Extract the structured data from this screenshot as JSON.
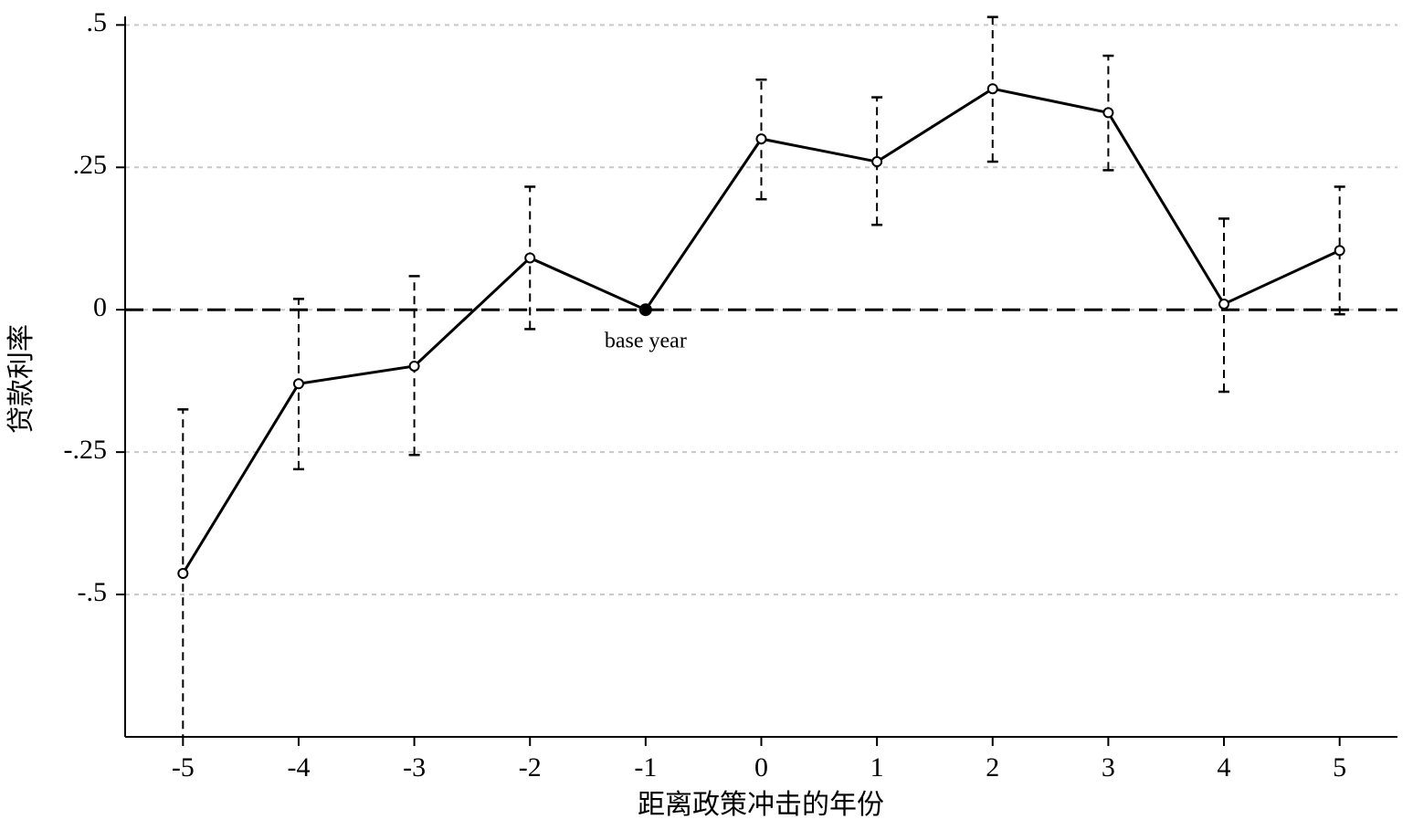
{
  "chart_data": {
    "type": "errorbar-line",
    "x": [
      -5,
      -4,
      -3,
      -2,
      -1,
      0,
      1,
      2,
      3,
      4,
      5
    ],
    "values": [
      -0.463,
      -0.13,
      -0.099,
      0.091,
      0,
      0.3,
      0.26,
      0.388,
      0.346,
      0.01,
      0.104
    ],
    "ci_lower": [
      -0.76,
      -0.28,
      -0.255,
      -0.034,
      null,
      0.194,
      0.149,
      0.26,
      0.245,
      -0.144,
      -0.008
    ],
    "ci_upper": [
      -0.175,
      0.019,
      0.059,
      0.216,
      null,
      0.404,
      0.373,
      0.514,
      0.446,
      0.16,
      0.216
    ],
    "color": "#000000",
    "xlim": [
      -5.5,
      5.5
    ],
    "xticks": [
      -5,
      -4,
      -3,
      -2,
      -1,
      0,
      1,
      2,
      3,
      4,
      5
    ],
    "ylim": [
      -0.75,
      0.515
    ],
    "yticks": [
      {
        "value": -0.5,
        "label": "-.5"
      },
      {
        "value": -0.25,
        "label": "-.25"
      },
      0,
      {
        "value": 0.25,
        "label": ".25"
      },
      {
        "value": 0.5,
        "label": ".5"
      }
    ],
    "reference_line": 0,
    "grid": true,
    "xlabel": "距离政策冲击的年份",
    "ylabel": "贷款利率",
    "annotation": "base year"
  }
}
